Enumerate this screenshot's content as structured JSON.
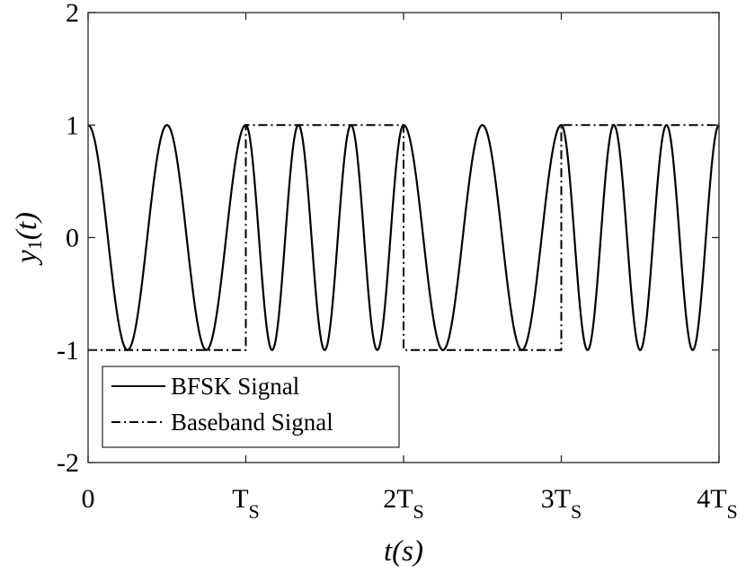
{
  "chart_data": {
    "type": "line",
    "title": "",
    "xlabel": "t(s)",
    "ylabel": "y1(t)",
    "ylabel_main": "y",
    "ylabel_sub": "1",
    "ylabel_rest": "(t)",
    "xlim": [
      0,
      4
    ],
    "ylim": [
      -2,
      2
    ],
    "xticks": [
      {
        "value": 0,
        "label": "0",
        "main": "0",
        "sub": ""
      },
      {
        "value": 1,
        "label": "TS",
        "main": "T",
        "sub": "S"
      },
      {
        "value": 2,
        "label": "2TS",
        "main": "2T",
        "sub": "S"
      },
      {
        "value": 3,
        "label": "3TS",
        "main": "3T",
        "sub": "S"
      },
      {
        "value": 4,
        "label": "4TS",
        "main": "4T",
        "sub": "S"
      }
    ],
    "yticks": [
      {
        "value": 2,
        "label": "2"
      },
      {
        "value": 1,
        "label": "1"
      },
      {
        "value": 0,
        "label": "0"
      },
      {
        "value": -1,
        "label": "-1"
      },
      {
        "value": -2,
        "label": "-2"
      }
    ],
    "grid": false,
    "legend_position": "bottom-left",
    "series": [
      {
        "name": "BFSK Signal",
        "style": "solid",
        "color": "#000000",
        "segments": [
          {
            "x0": 0,
            "x1": 1,
            "cycles_per_symbol": 2,
            "amplitude": 1
          },
          {
            "x0": 1,
            "x1": 2,
            "cycles_per_symbol": 3,
            "amplitude": 1
          },
          {
            "x0": 2,
            "x1": 3,
            "cycles_per_symbol": 2,
            "amplitude": 1
          },
          {
            "x0": 3,
            "x1": 4,
            "cycles_per_symbol": 3,
            "amplitude": 1
          }
        ]
      },
      {
        "name": "Baseband Signal",
        "style": "dash-dot",
        "color": "#000000",
        "x": [
          0,
          1,
          1,
          2,
          2,
          3,
          3,
          4
        ],
        "y": [
          -1,
          -1,
          1,
          1,
          -1,
          -1,
          1,
          1
        ]
      }
    ]
  }
}
